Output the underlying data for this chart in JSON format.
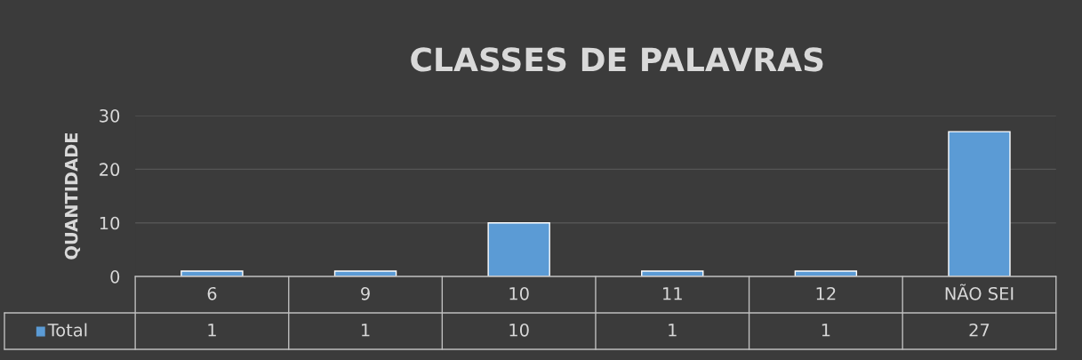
{
  "chart_data": {
    "type": "bar",
    "title": "CLASSES DE PALAVRAS",
    "ylabel": "QUANTIDADE",
    "categories": [
      "6",
      "9",
      "10",
      "11",
      "12",
      "NÃO SEI"
    ],
    "series": [
      {
        "name": "Total",
        "color": "#5b9bd5",
        "values": [
          1,
          1,
          10,
          1,
          1,
          27
        ]
      }
    ],
    "ylim": [
      0,
      30
    ],
    "yticks": [
      0,
      10,
      20,
      30
    ],
    "grid": "y",
    "legend": "bottom",
    "data_labels": true
  }
}
